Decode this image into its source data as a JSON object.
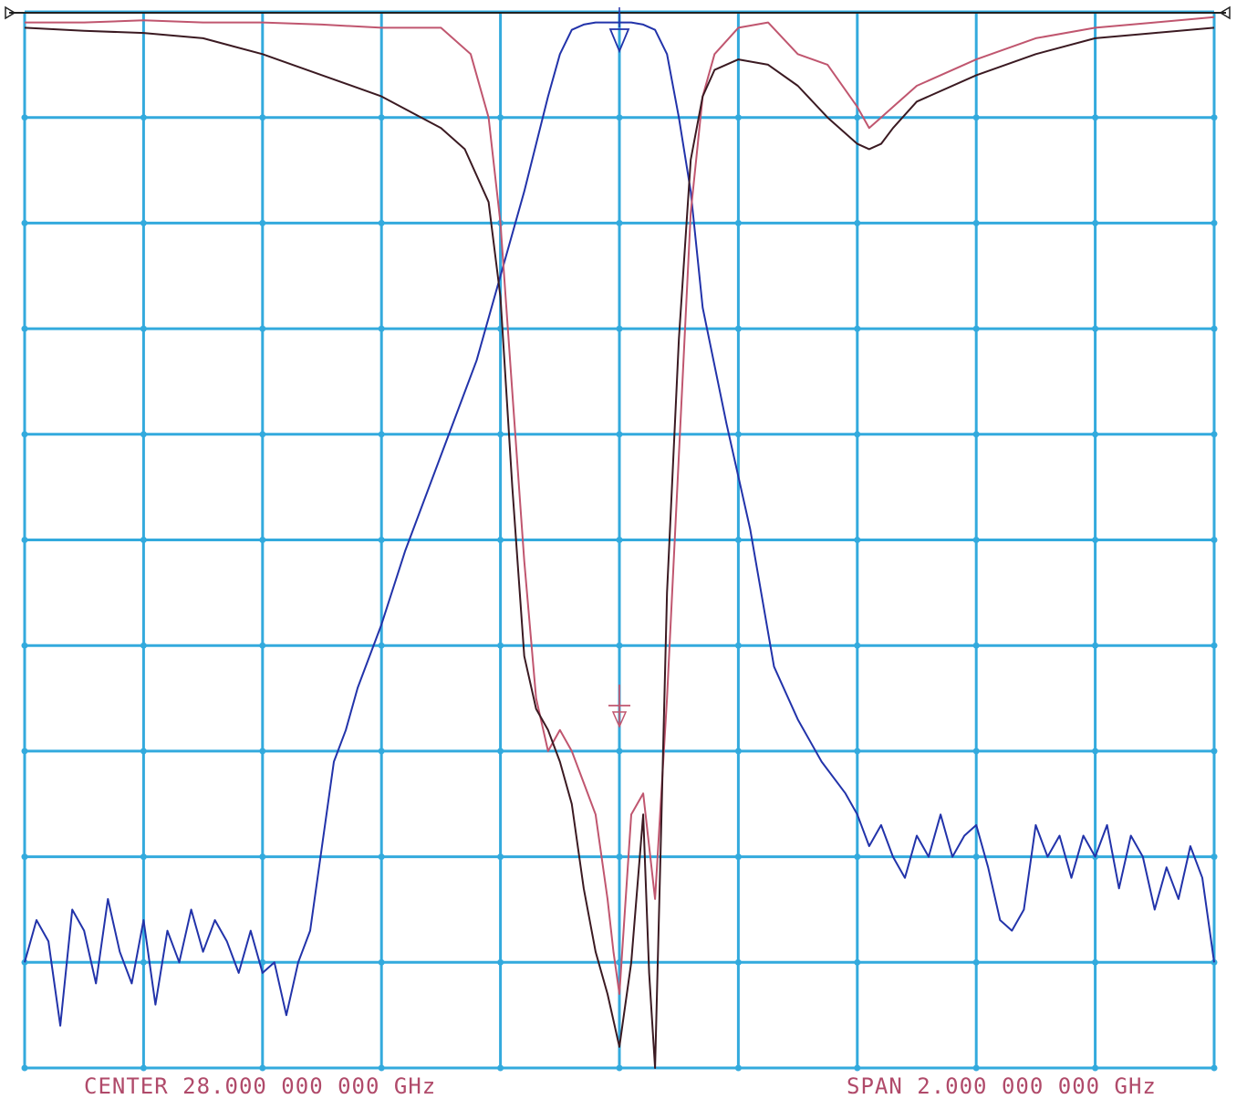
{
  "chart_data": {
    "type": "line",
    "title": "",
    "xlabel": "",
    "ylabel": "",
    "center_label": "CENTER 28.000 000 000 GHz",
    "span_label": "SPAN  2.000 000 000 GHz",
    "x_unit": "GHz",
    "xlim": [
      27.0,
      29.0
    ],
    "ylim": [
      0,
      10
    ],
    "grid": {
      "x_divisions": 10,
      "y_divisions": 10,
      "on": true
    },
    "colors": {
      "grid": "#33aadd",
      "transmission": "#2233aa",
      "reflection_1": "#c0566f",
      "reflection_2": "#3b1a22",
      "frame": "#222222",
      "labels": "#b04a6a"
    },
    "series": [
      {
        "x": [
          27.0,
          27.02,
          27.04,
          27.06,
          27.08,
          27.1,
          27.12,
          27.14,
          27.16,
          27.18,
          27.2,
          27.22,
          27.24,
          27.26,
          27.28,
          27.3,
          27.32,
          27.34,
          27.36,
          27.38,
          27.4,
          27.42,
          27.44,
          27.46,
          27.48,
          27.5,
          27.52,
          27.54,
          27.56,
          27.6,
          27.64,
          27.7,
          27.76,
          27.8,
          27.84,
          27.88,
          27.9,
          27.92,
          27.94,
          27.96,
          27.98,
          28.0,
          28.02,
          28.04,
          28.06,
          28.08,
          28.1,
          28.12,
          28.14,
          28.18,
          28.22,
          28.26,
          28.3,
          28.34,
          28.38,
          28.4,
          28.42,
          28.44,
          28.46,
          28.48,
          28.5,
          28.52,
          28.54,
          28.56,
          28.58,
          28.6,
          28.62,
          28.64,
          28.66,
          28.68,
          28.7,
          28.72,
          28.74,
          28.76,
          28.78,
          28.8,
          28.82,
          28.84,
          28.86,
          28.88,
          28.9,
          28.92,
          28.94,
          28.96,
          28.98,
          29.0
        ],
        "values": [
          1.0,
          1.4,
          1.2,
          0.4,
          1.5,
          1.3,
          0.8,
          1.6,
          1.1,
          0.8,
          1.4,
          0.6,
          1.3,
          1.0,
          1.5,
          1.1,
          1.4,
          1.2,
          0.9,
          1.3,
          0.9,
          1.0,
          0.5,
          1.0,
          1.3,
          2.1,
          2.9,
          3.2,
          3.6,
          4.2,
          4.9,
          5.8,
          6.7,
          7.5,
          8.3,
          9.2,
          9.6,
          9.83,
          9.88,
          9.9,
          9.9,
          9.9,
          9.9,
          9.88,
          9.83,
          9.6,
          9.0,
          8.3,
          7.2,
          6.1,
          5.1,
          3.8,
          3.3,
          2.9,
          2.6,
          2.4,
          2.1,
          2.3,
          2.0,
          1.8,
          2.2,
          2.0,
          2.4,
          2.0,
          2.2,
          2.3,
          1.9,
          1.4,
          1.3,
          1.5,
          2.3,
          2.0,
          2.2,
          1.8,
          2.2,
          2.0,
          2.3,
          1.7,
          2.2,
          2.0,
          1.5,
          1.9,
          1.6,
          2.1,
          1.8,
          1.0
        ]
      },
      {
        "x": [
          27.0,
          27.1,
          27.2,
          27.3,
          27.4,
          27.5,
          27.6,
          27.7,
          27.75,
          27.78,
          27.8,
          27.82,
          27.84,
          27.86,
          27.88,
          27.9,
          27.92,
          27.94,
          27.96,
          27.98,
          27.99,
          28.0,
          28.02,
          28.04,
          28.06,
          28.08,
          28.1,
          28.12,
          28.14,
          28.16,
          28.2,
          28.25,
          28.3,
          28.35,
          28.4,
          28.42,
          28.44,
          28.46,
          28.5,
          28.6,
          28.7,
          28.8,
          28.9,
          29.0
        ],
        "values": [
          9.9,
          9.9,
          9.92,
          9.9,
          9.9,
          9.88,
          9.85,
          9.85,
          9.6,
          9.0,
          8.0,
          6.4,
          4.8,
          3.5,
          3.0,
          3.2,
          3.0,
          2.7,
          2.4,
          1.6,
          1.1,
          0.7,
          2.4,
          2.6,
          1.6,
          3.5,
          5.8,
          8.1,
          9.2,
          9.6,
          9.85,
          9.9,
          9.6,
          9.5,
          9.1,
          8.9,
          9.0,
          9.1,
          9.3,
          9.55,
          9.75,
          9.85,
          9.9,
          9.95
        ]
      },
      {
        "x": [
          27.0,
          27.1,
          27.2,
          27.3,
          27.4,
          27.5,
          27.6,
          27.7,
          27.74,
          27.78,
          27.8,
          27.82,
          27.84,
          27.86,
          27.88,
          27.9,
          27.92,
          27.94,
          27.96,
          27.98,
          28.0,
          28.02,
          28.04,
          28.05,
          28.06,
          28.07,
          28.08,
          28.1,
          28.12,
          28.14,
          28.16,
          28.2,
          28.25,
          28.3,
          28.35,
          28.4,
          28.42,
          28.44,
          28.46,
          28.5,
          28.6,
          28.7,
          28.8,
          28.9,
          29.0
        ],
        "values": [
          9.85,
          9.82,
          9.8,
          9.75,
          9.6,
          9.4,
          9.2,
          8.9,
          8.7,
          8.2,
          7.3,
          5.5,
          3.9,
          3.4,
          3.2,
          2.9,
          2.5,
          1.7,
          1.1,
          0.7,
          0.2,
          1.0,
          2.4,
          0.9,
          0.0,
          2.2,
          4.5,
          6.9,
          8.6,
          9.2,
          9.45,
          9.55,
          9.5,
          9.3,
          9.0,
          8.75,
          8.7,
          8.75,
          8.9,
          9.15,
          9.4,
          9.6,
          9.75,
          9.8,
          9.85
        ]
      }
    ]
  }
}
